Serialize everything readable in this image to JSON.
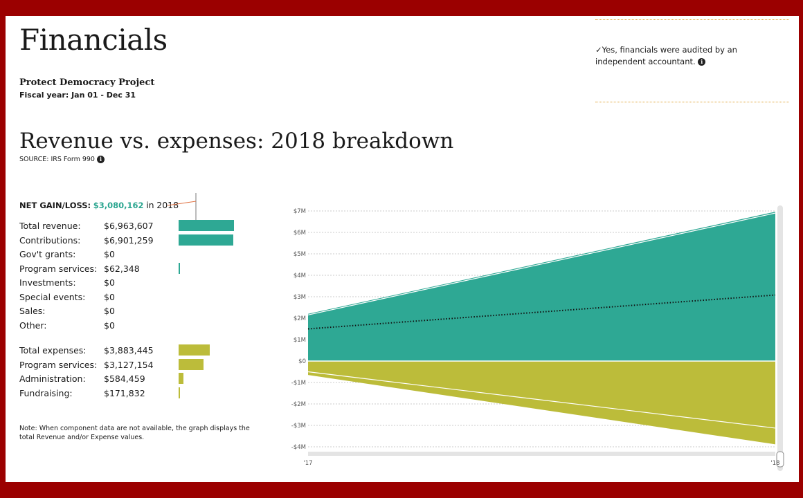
{
  "page": {
    "title": "Financials",
    "org_name": "Protect Democracy Project",
    "fiscal_year": "Fiscal year: Jan 01 - Dec 31",
    "audit_text": "Yes, financials were audited by an independent accountant.",
    "audit_check": "✓",
    "info_glyph": "i",
    "section_title": "Revenue vs. expenses: 2018 breakdown",
    "source": "SOURCE: IRS Form 990",
    "net_label": "NET GAIN/LOSS:",
    "net_value": "$3,080,162",
    "net_in": "in",
    "net_year": "2018",
    "note": "Note: When component data are not available, the graph displays the total Revenue and/or Expense values."
  },
  "revenue_rows": [
    {
      "label": "Total revenue:",
      "amount": "$6,963,607",
      "value": 6963607
    },
    {
      "label": "Contributions:",
      "amount": "$6,901,259",
      "value": 6901259
    },
    {
      "label": "Gov't grants:",
      "amount": "$0",
      "value": 0
    },
    {
      "label": "Program services:",
      "amount": "$62,348",
      "value": 62348
    },
    {
      "label": "Investments:",
      "amount": "$0",
      "value": 0
    },
    {
      "label": "Special events:",
      "amount": "$0",
      "value": 0
    },
    {
      "label": "Sales:",
      "amount": "$0",
      "value": 0
    },
    {
      "label": "Other:",
      "amount": "$0",
      "value": 0
    }
  ],
  "expense_rows": [
    {
      "label": "Total expenses:",
      "amount": "$3,883,445",
      "value": 3883445
    },
    {
      "label": "Program services:",
      "amount": "$3,127,154",
      "value": 3127154
    },
    {
      "label": "Administration:",
      "amount": "$584,459",
      "value": 584459
    },
    {
      "label": "Fundraising:",
      "amount": "$171,832",
      "value": 171832
    }
  ],
  "colors": {
    "revenue": "#2ea894",
    "expense": "#bcbc3a",
    "net_value": "#2aa58f",
    "grid": "#bbbbbb",
    "audit_rule": "#e0a030",
    "background": "#9b0000"
  },
  "chart_data": {
    "type": "area",
    "x": [
      "'17",
      "'18"
    ],
    "ylim": [
      -4000000,
      7000000
    ],
    "yticks": [
      7000000,
      6000000,
      5000000,
      4000000,
      3000000,
      2000000,
      1000000,
      0,
      -1000000,
      -2000000,
      -3000000,
      -4000000
    ],
    "ytick_labels": [
      "$7M",
      "$6M",
      "$5M",
      "$4M",
      "$3M",
      "$2M",
      "$1M",
      "$0",
      "-$1M",
      "-$2M",
      "-$3M",
      "-$4M"
    ],
    "series": [
      {
        "name": "Total revenue",
        "values": [
          2200000,
          6963607
        ]
      },
      {
        "name": "Contributions",
        "values": [
          2150000,
          6901259
        ]
      },
      {
        "name": "Total expenses",
        "values": [
          -650000,
          -3883445
        ]
      },
      {
        "name": "Program services",
        "values": [
          -500000,
          -3127154
        ]
      },
      {
        "name": "Net gain/loss",
        "values": [
          1500000,
          3080162
        ]
      }
    ],
    "grid": true
  }
}
